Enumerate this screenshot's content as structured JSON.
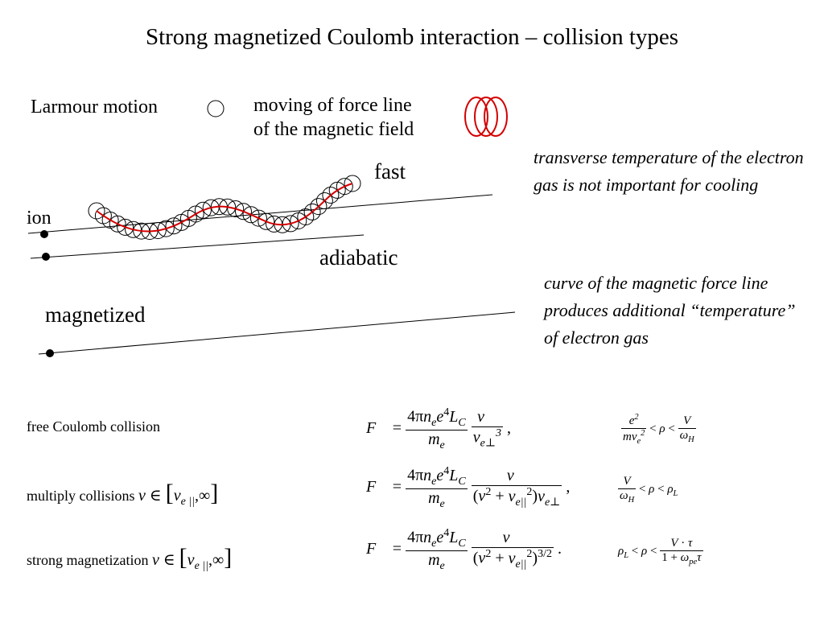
{
  "title": "Strong magnetized Coulomb interaction – collision types",
  "legend": {
    "larmour": "Larmour motion",
    "moving_line1": "moving of force line",
    "moving_line2": "of the magnetic field"
  },
  "diagram": {
    "fast": "fast",
    "ion": "ion",
    "adiabatic": "adiabatic",
    "magnetized": "magnetized",
    "colors": {
      "helix": "#d40000",
      "lines": "#000000"
    }
  },
  "notes": {
    "transverse": "transverse temperature of the electron gas is not important for cooling",
    "curve": "curve of the magnetic force line produces additional “temperature” of electron gas"
  },
  "rows": {
    "free": "free Coulomb collision",
    "multiply": "multiply collisions",
    "strong": "strong magnetization"
  }
}
